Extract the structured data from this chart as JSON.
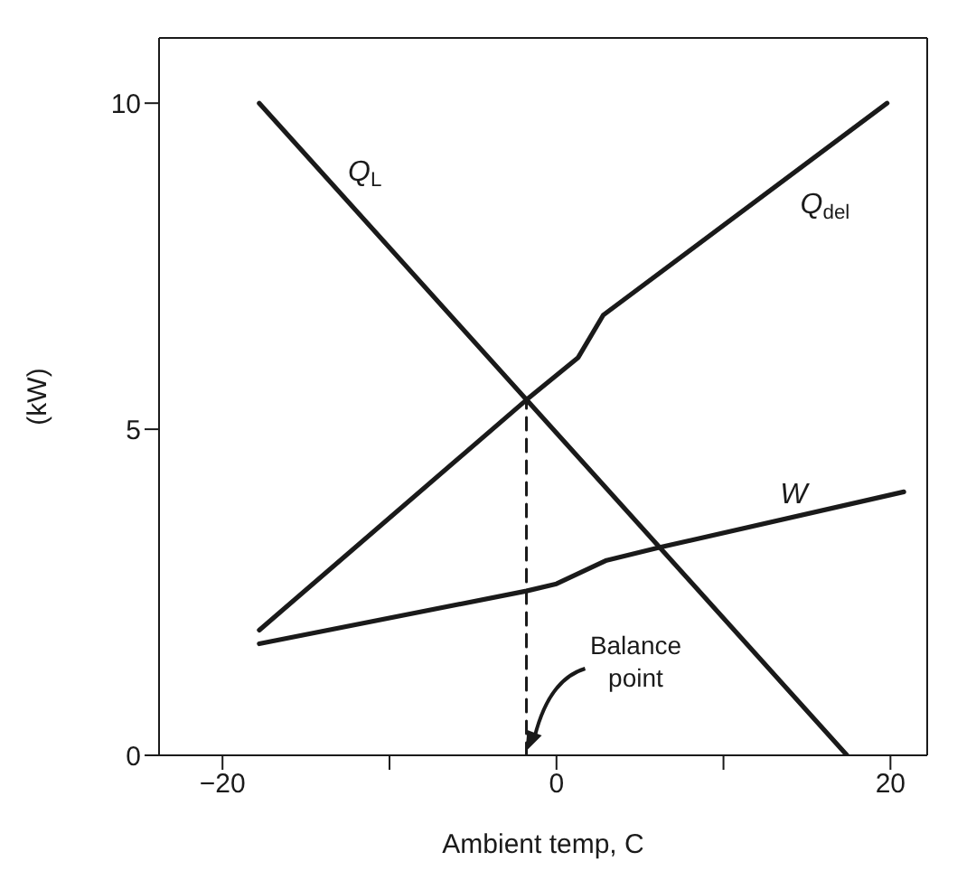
{
  "chart_data": {
    "type": "line",
    "xlabel": "Ambient temp, C",
    "ylabel": "(kW)",
    "xlim": [
      -23.8,
      22.2
    ],
    "ylim": [
      0,
      11
    ],
    "xticks": [
      -20,
      {
        "value": -10,
        "label": null
      },
      0,
      {
        "value": 10,
        "label": null
      },
      20
    ],
    "yticks": [
      0,
      5,
      10
    ],
    "grid": false,
    "marker": "none",
    "series": [
      {
        "name": "Q$_{L}$",
        "color": "#1a1a1a",
        "x": [
          -17.8,
          17.4
        ],
        "values": [
          10,
          0
        ]
      },
      {
        "name": "Q$_{del}$",
        "color": "#1a1a1a",
        "x": [
          -17.8,
          -1.8,
          1.3,
          2.8,
          19.8
        ],
        "values": [
          1.92,
          5.45,
          6.1,
          6.75,
          10
        ]
      },
      {
        "name": "W",
        "color": "#1a1a1a",
        "x": [
          -17.8,
          -1.8,
          0,
          3,
          6.2,
          20.8
        ],
        "values": [
          1.71,
          2.52,
          2.63,
          2.99,
          3.19,
          4.04
        ]
      },
      {
        "color": "#1a1a1a",
        "line_style": "dashed",
        "x": [
          -1.8,
          -1.8
        ],
        "values": [
          0,
          5.45
        ]
      }
    ],
    "annotations": [
      "Balance point"
    ]
  }
}
